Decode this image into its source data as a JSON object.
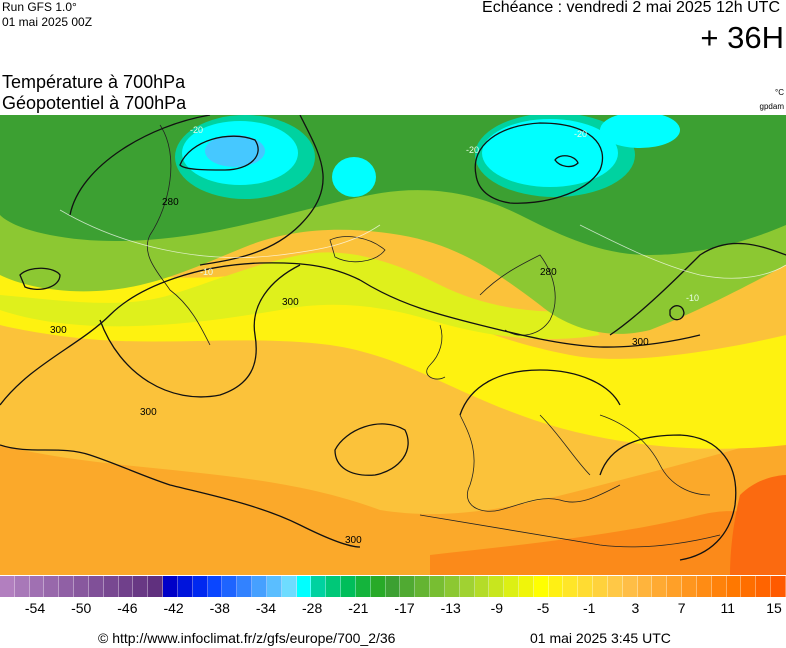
{
  "header": {
    "run": "Run GFS 1.0°",
    "run_date": "01 mai 2025 00Z",
    "echeance": "Echéance : vendredi 2 mai 2025 12h UTC",
    "lead": "+ 36H"
  },
  "titles": {
    "temperature": "Température à 700hPa",
    "geopotential": "Géopotentiel à 700hPa",
    "unit_temp": "°C",
    "unit_geo": "gpdam"
  },
  "map": {
    "contour_labels": [
      "280",
      "300",
      "300",
      "300",
      "280",
      "300",
      "300"
    ],
    "isotherm_labels": [
      "-20",
      "-20",
      "-10",
      "-10",
      "-20"
    ]
  },
  "scale": {
    "tick_labels": [
      "-54",
      "-50",
      "-46",
      "-42",
      "-38",
      "-34",
      "-28",
      "-21",
      "-17",
      "-13",
      "-9",
      "-5",
      "-1",
      "3",
      "7",
      "11",
      "15"
    ],
    "colors": [
      "#b27fbf",
      "#a878b8",
      "#a070b2",
      "#9868ab",
      "#9060a5",
      "#88589e",
      "#805098",
      "#784891",
      "#70408b",
      "#683884",
      "#60307e",
      "#0000c8",
      "#0014dc",
      "#0028f0",
      "#0a46ff",
      "#1e64ff",
      "#3282ff",
      "#46a0ff",
      "#5abeff",
      "#6edcff",
      "#00ffff",
      "#00d2a0",
      "#00c878",
      "#00be5a",
      "#14b43c",
      "#28aa28",
      "#3ca032",
      "#50aa32",
      "#64b432",
      "#78be32",
      "#8cc832",
      "#a0d232",
      "#b4dc28",
      "#c8e61e",
      "#dcf014",
      "#f0f50a",
      "#ffff00",
      "#fff014",
      "#ffe628",
      "#ffdc32",
      "#ffd23c",
      "#ffc846",
      "#ffbe46",
      "#ffb43c",
      "#ffaa32",
      "#ffa028",
      "#ff961e",
      "#ff8c14",
      "#ff820a",
      "#ff7800",
      "#ff6e00",
      "#ff6400",
      "#ff5a00"
    ]
  },
  "footer": {
    "source": "© http://www.infoclimat.fr/z/gfs/europe/700_2/36",
    "timestamp": "01 mai 2025  3:45 UTC"
  }
}
